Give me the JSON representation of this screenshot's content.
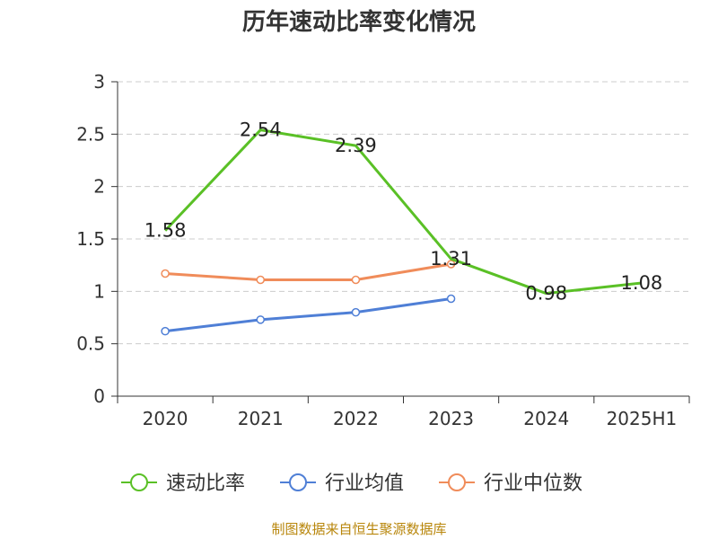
{
  "title": "历年速动比率变化情况",
  "footer": "制图数据来自恒生聚源数据库",
  "chart_data": {
    "type": "line",
    "title": "历年速动比率变化情况",
    "categories": [
      "2020",
      "2021",
      "2022",
      "2023",
      "2024",
      "2025H1"
    ],
    "ylim": [
      0,
      3
    ],
    "yticks": [
      0,
      0.5,
      1,
      1.5,
      2,
      2.5,
      3
    ],
    "ytick_labels": [
      "0",
      "0.5",
      "1",
      "1.5",
      "2",
      "2.5",
      "3"
    ],
    "grid": true,
    "legend_position": "bottom",
    "series": [
      {
        "name": "速动比率",
        "color": "#5ac026",
        "values": [
          1.58,
          2.54,
          2.39,
          1.31,
          0.98,
          1.08
        ],
        "labels": [
          "1.58",
          "2.54",
          "2.39",
          "1.31",
          "0.98",
          "1.08"
        ],
        "show_labels": true,
        "show_markers": false
      },
      {
        "name": "行业均值",
        "color": "#4f7fd6",
        "values": [
          0.62,
          0.73,
          0.8,
          0.93,
          null,
          null
        ],
        "show_labels": false,
        "show_markers": true
      },
      {
        "name": "行业中位数",
        "color": "#f08c5a",
        "values": [
          1.17,
          1.11,
          1.11,
          1.26,
          null,
          null
        ],
        "show_labels": false,
        "show_markers": true
      }
    ]
  }
}
